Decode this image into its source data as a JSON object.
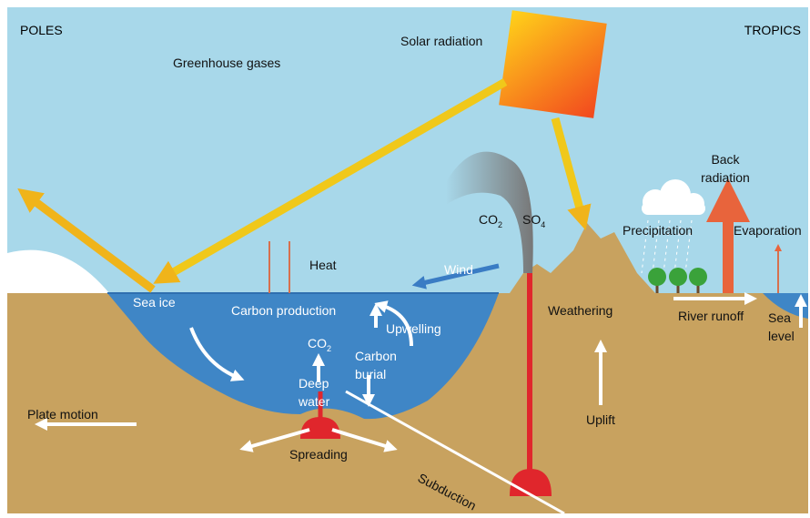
{
  "corners": {
    "left": "POLES",
    "right": "TROPICS"
  },
  "labels": [
    {
      "lines": [
        "Solar radiation"
      ]
    },
    {
      "lines": [
        "Greenhouse gases"
      ]
    },
    {
      "lines": [
        "CO"
      ],
      "sub": "2"
    },
    {
      "lines": [
        "SO"
      ],
      "sub": "4"
    },
    {
      "lines": [
        "Back",
        "radiation"
      ]
    },
    {
      "lines": [
        "Precipitation"
      ]
    },
    {
      "lines": [
        "Evaporation"
      ]
    },
    {
      "lines": [
        "Heat"
      ]
    },
    {
      "lines": [
        "Wind"
      ]
    },
    {
      "lines": [
        "Sea ice"
      ]
    },
    {
      "lines": [
        "Carbon production"
      ]
    },
    {
      "lines": [
        "Weathering"
      ]
    },
    {
      "lines": [
        "River runoff"
      ]
    },
    {
      "lines": [
        "Sea",
        "level"
      ]
    },
    {
      "lines": [
        "Upwelling"
      ]
    },
    {
      "lines": [
        "CO"
      ],
      "sub": "2"
    },
    {
      "lines": [
        "Carbon",
        "burial"
      ]
    },
    {
      "lines": [
        "Deep",
        "water"
      ]
    },
    {
      "lines": [
        "Plate motion"
      ]
    },
    {
      "lines": [
        "Uplift"
      ]
    },
    {
      "lines": [
        "Spreading"
      ]
    },
    {
      "lines": [
        "Subduction"
      ]
    }
  ]
}
